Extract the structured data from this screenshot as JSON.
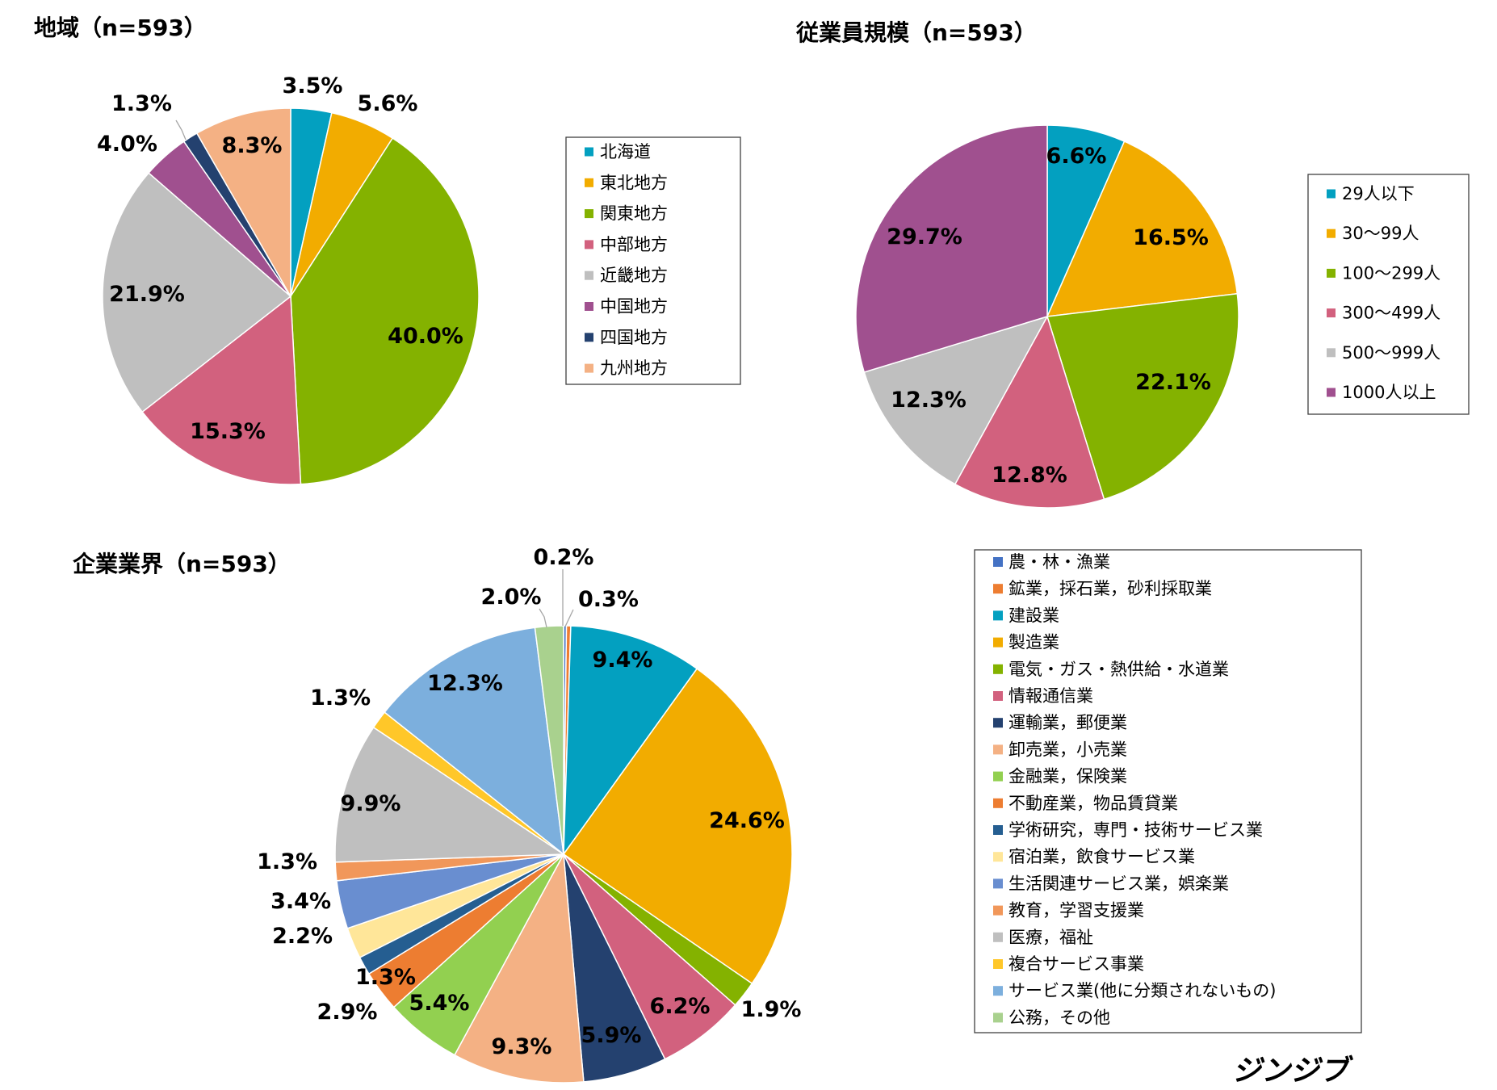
{
  "brand": "ジンジブ",
  "chart_data": [
    {
      "type": "pie",
      "title": "地域（n=593）",
      "categories": [
        "北海道",
        "東北地方",
        "関東地方",
        "中部地方",
        "近畿地方",
        "中国地方",
        "四国地方",
        "九州地方"
      ],
      "values": [
        3.5,
        5.6,
        40.0,
        15.3,
        21.9,
        4.0,
        1.3,
        8.3
      ],
      "labels": [
        "3.5%",
        "5.6%",
        "40.0%",
        "15.3%",
        "21.9%",
        "4.0%",
        "1.3%",
        "8.3%"
      ],
      "colors": [
        "#03a0c0",
        "#f2ac00",
        "#84b200",
        "#d2617e",
        "#bfbfbf",
        "#a0508f",
        "#24416f",
        "#f4b184"
      ],
      "legend_position": "right"
    },
    {
      "type": "pie",
      "title": "従業員規模（n=593）",
      "categories": [
        "29人以下",
        "30～99人",
        "100～299人",
        "300～499人",
        "500～999人",
        "1000人以上"
      ],
      "values": [
        6.6,
        16.5,
        22.1,
        12.8,
        12.3,
        29.7
      ],
      "labels": [
        "6.6%",
        "16.5%",
        "22.1%",
        "12.8%",
        "12.3%",
        "29.7%"
      ],
      "colors": [
        "#03a0c0",
        "#f2ac00",
        "#84b200",
        "#d2617e",
        "#bfbfbf",
        "#a0508f"
      ],
      "legend_position": "right"
    },
    {
      "type": "pie",
      "title": "企業業界（n=593）",
      "categories": [
        "農・林・漁業",
        "鉱業，採石業，砂利採取業",
        "建設業",
        "製造業",
        "電気・ガス・熱供給・水道業",
        "情報通信業",
        "運輸業，郵便業",
        "卸売業，小売業",
        "金融業，保険業",
        "不動産業，物品賃貸業",
        "学術研究，専門・技術サービス業",
        "宿泊業，飲食サービス業",
        "生活関連サービス業，娯楽業",
        "教育，学習支援業",
        "医療，福祉",
        "複合サービス事業",
        "サービス業(他に分類されないもの)",
        "公務，その他"
      ],
      "values": [
        0.2,
        0.3,
        9.4,
        24.6,
        1.9,
        6.2,
        5.9,
        9.3,
        5.4,
        2.9,
        1.3,
        2.2,
        3.4,
        1.3,
        9.9,
        1.3,
        12.3,
        2.0
      ],
      "labels": [
        "0.2%",
        "0.3%",
        "9.4%",
        "24.6%",
        "1.9%",
        "6.2%",
        "5.9%",
        "9.3%",
        "5.4%",
        "2.9%",
        "1.3%",
        "2.2%",
        "3.4%",
        "1.3%",
        "9.9%",
        "1.3%",
        "12.3%",
        "2.0%"
      ],
      "colors": [
        "#4472c4",
        "#ed7d31",
        "#03a0c0",
        "#f2ac00",
        "#84b200",
        "#d2617e",
        "#24416f",
        "#f4b184",
        "#92d050",
        "#ed7d31",
        "#255e91",
        "#ffe699",
        "#698ed0",
        "#f1975a",
        "#bfbfbf",
        "#ffc729",
        "#7cafdd",
        "#a9d18e"
      ],
      "legend_position": "right"
    }
  ]
}
